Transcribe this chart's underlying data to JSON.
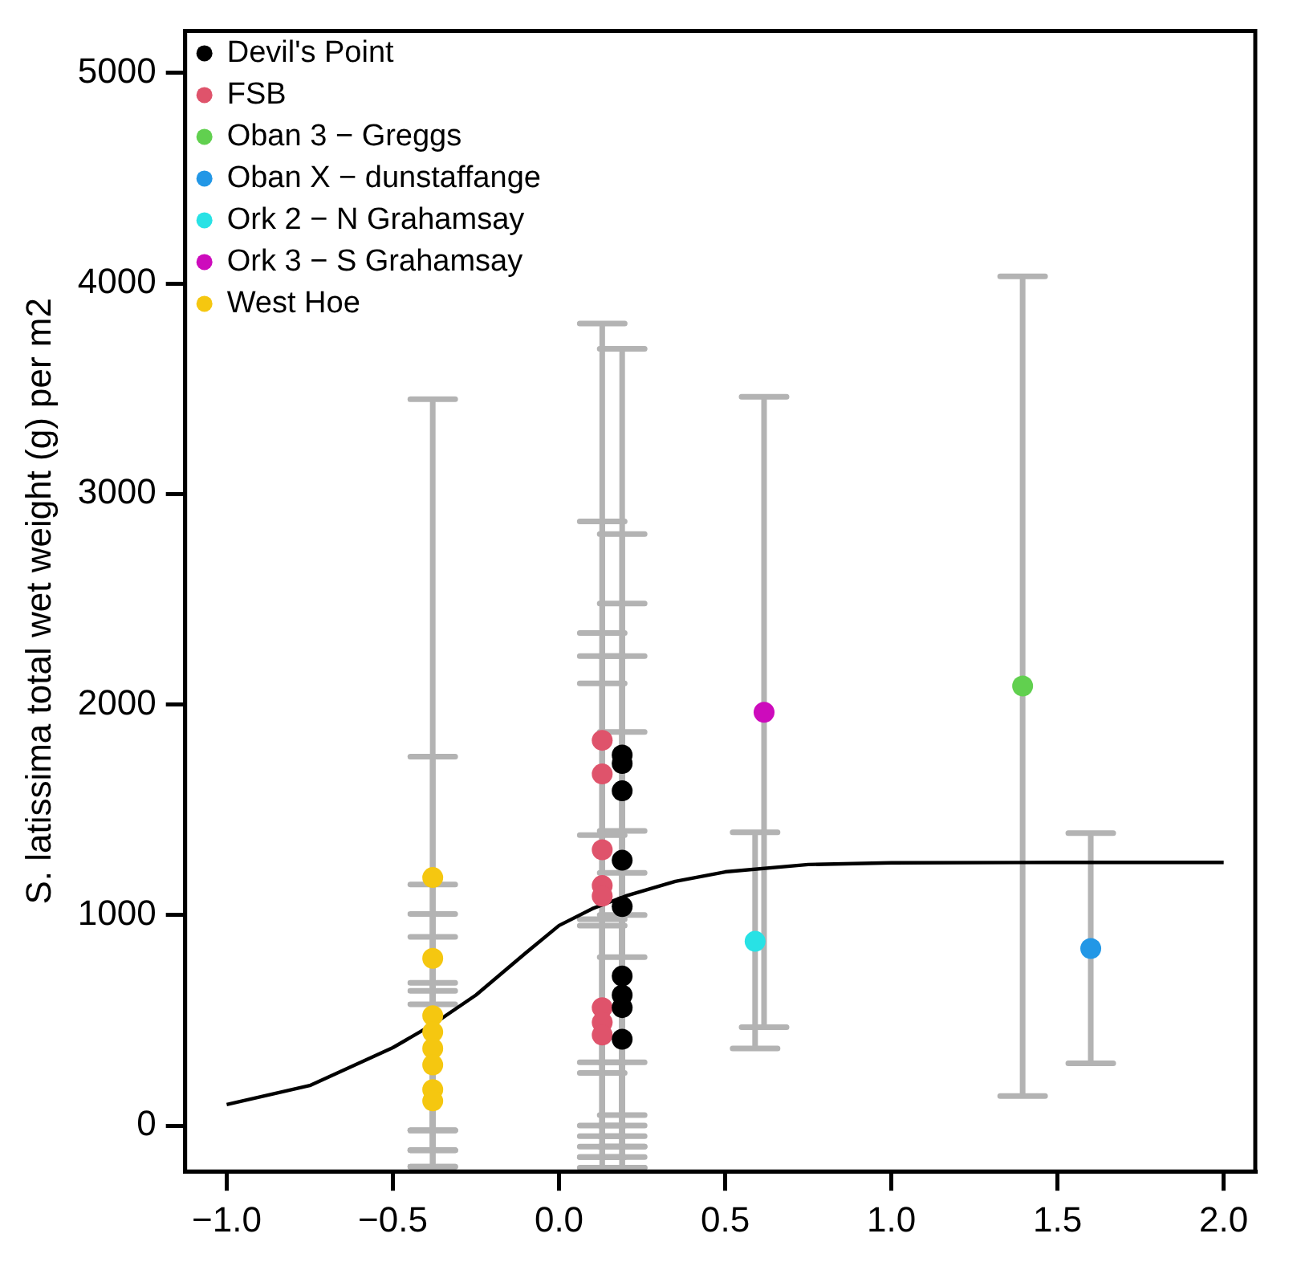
{
  "chart_data": {
    "type": "scatter",
    "ylabel": "S. latissima total wet weight (g) per m2",
    "xlim": [
      -1.125,
      2.095
    ],
    "ylim": [
      -218,
      5200
    ],
    "xticks": [
      {
        "value": -1,
        "label": "−1.0"
      },
      {
        "value": -0.5,
        "label": "−0.5"
      },
      {
        "value": 0,
        "label": "0.0"
      },
      {
        "value": 0.5,
        "label": "0.5"
      },
      {
        "value": 1,
        "label": "1.0"
      },
      {
        "value": 1.5,
        "label": "1.5"
      },
      {
        "value": 2,
        "label": "2.0"
      }
    ],
    "yticks": [
      0,
      1000,
      2000,
      3000,
      4000,
      5000
    ],
    "grid": false,
    "legend": "top left",
    "marker": "circle",
    "series": [
      {
        "name": "Devil's Point",
        "color": "#000000",
        "x": [
          0.19,
          0.19,
          0.19,
          0.19,
          0.19,
          0.19,
          0.19,
          0.19,
          0.19
        ],
        "values": [
          1760,
          1720,
          1590,
          1260,
          1040,
          710,
          620,
          560,
          410
        ],
        "errors": [
          [
            -150,
            3690
          ],
          [
            -100,
            2810
          ],
          [
            0,
            2480
          ],
          [
            300,
            2230
          ],
          [
            -50,
            1870
          ],
          [
            -200,
            1400
          ],
          [
            50,
            1200
          ],
          [
            -100,
            1000
          ],
          [
            -200,
            800
          ]
        ]
      },
      {
        "name": "FSB",
        "color": "#df536b",
        "x": [
          0.13,
          0.13,
          0.13,
          0.13,
          0.13,
          0.13,
          0.13,
          0.13
        ],
        "values": [
          1830,
          1670,
          1310,
          1140,
          1090,
          560,
          490,
          430
        ],
        "errors": [
          [
            -150,
            3810
          ],
          [
            -100,
            2870
          ],
          [
            250,
            2340
          ],
          [
            300,
            2230
          ],
          [
            -50,
            2100
          ],
          [
            -150,
            1380
          ],
          [
            0,
            980
          ],
          [
            -200,
            950
          ]
        ]
      },
      {
        "name": "Oban 3 − Greggs",
        "color": "#61d04f",
        "x": [
          1.395
        ],
        "values": [
          2088
        ],
        "errors": [
          [
            140,
            4034
          ]
        ]
      },
      {
        "name": "Oban X − dunstaffange",
        "color": "#2297e6",
        "x": [
          1.6
        ],
        "values": [
          841
        ],
        "errors": [
          [
            296,
            1389
          ]
        ]
      },
      {
        "name": "Ork 2 − N Grahamsay",
        "color": "#28e2e5",
        "x": [
          0.59
        ],
        "values": [
          875
        ],
        "errors": [
          [
            366,
            1393
          ]
        ]
      },
      {
        "name": "Ork 3 − S Grahamsay",
        "color": "#cd0bbc",
        "x": [
          0.617
        ],
        "values": [
          1963
        ],
        "errors": [
          [
            467,
            3462
          ]
        ]
      },
      {
        "name": "West Hoe",
        "color": "#f5c710",
        "x": [
          -0.38,
          -0.38,
          -0.38,
          -0.38,
          -0.38,
          -0.38,
          -0.38,
          -0.38
        ],
        "values": [
          1178,
          794,
          522,
          444,
          366,
          288,
          171,
          117
        ],
        "errors": [
          [
            -195,
            3450
          ],
          [
            -117,
            1752
          ],
          [
            -23,
            1145
          ],
          [
            -23,
            1005
          ],
          [
            -117,
            896
          ],
          [
            -195,
            678
          ],
          [
            -23,
            576
          ],
          [
            -117,
            640
          ]
        ]
      },
      {
        "type": "line",
        "color": "#000000",
        "marker": "none",
        "x": [
          -1,
          -0.75,
          -0.5,
          -0.38,
          -0.25,
          -0.1,
          0,
          0.1,
          0.2,
          0.35,
          0.5,
          0.75,
          1,
          1.5,
          2
        ],
        "values": [
          100,
          190,
          370,
          480,
          620,
          820,
          950,
          1030,
          1090,
          1160,
          1205,
          1240,
          1248,
          1250,
          1250
        ]
      }
    ]
  }
}
